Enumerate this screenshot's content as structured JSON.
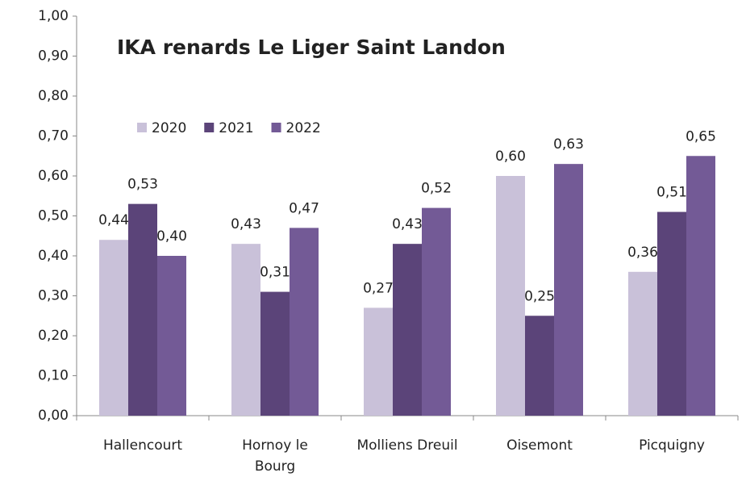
{
  "chart_data": {
    "type": "bar",
    "title": "IKA renards Le Liger Saint Landon",
    "categories": [
      "Hallencourt",
      "Hornoy le Bourg",
      "Molliens Dreuil",
      "Oisemont",
      "Picquigny"
    ],
    "series": [
      {
        "name": "2020",
        "color": "#c9c1d9",
        "values": [
          0.44,
          0.43,
          0.27,
          0.6,
          0.36
        ],
        "value_labels": [
          "0,44",
          "0,43",
          "0,27",
          "0,60",
          "0,36"
        ]
      },
      {
        "name": "2021",
        "color": "#5b4479",
        "values": [
          0.53,
          0.31,
          0.43,
          0.25,
          0.51
        ],
        "value_labels": [
          "0,53",
          "0,31",
          "0,43",
          "0,25",
          "0,51"
        ]
      },
      {
        "name": "2022",
        "color": "#735a96",
        "values": [
          0.4,
          0.47,
          0.52,
          0.63,
          0.65
        ],
        "value_labels": [
          "0,40",
          "0,47",
          "0,52",
          "0,63",
          "0,65"
        ]
      }
    ],
    "ylim": [
      0,
      1
    ],
    "yticks": [
      {
        "value": 0,
        "label": "0,00"
      },
      {
        "value": 0.1,
        "label": "0,10"
      },
      {
        "value": 0.2,
        "label": "0,20"
      },
      {
        "value": 0.3,
        "label": "0,30"
      },
      {
        "value": 0.4,
        "label": "0,40"
      },
      {
        "value": 0.5,
        "label": "0,50"
      },
      {
        "value": 0.6,
        "label": "0,60"
      },
      {
        "value": 0.7,
        "label": "0,70"
      },
      {
        "value": 0.8,
        "label": "0,80"
      },
      {
        "value": 0.9,
        "label": "0,90"
      },
      {
        "value": 1,
        "label": "1,00"
      }
    ],
    "legend": "top-left"
  }
}
